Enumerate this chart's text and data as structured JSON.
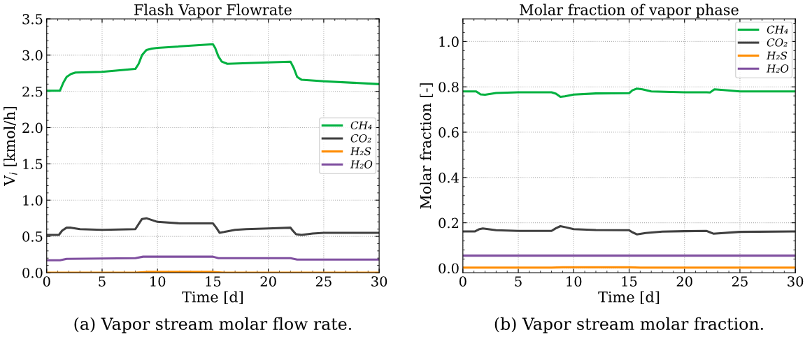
{
  "chart_data": [
    {
      "type": "line",
      "title": "Flash Vapor Flowrate",
      "xlabel": "Time [d]",
      "ylabel": "V$_{i}$ [kmol/h]",
      "xlim": [
        0,
        30
      ],
      "ylim": [
        0,
        3.5
      ],
      "xticks": [
        0,
        5,
        10,
        15,
        20,
        25,
        30
      ],
      "yticks": [
        {
          "value": 0,
          "label": "0.0"
        },
        0.5,
        {
          "value": 1,
          "label": "1.0"
        },
        1.5,
        {
          "value": 2,
          "label": "2.0"
        },
        2.5,
        {
          "value": 3,
          "label": "3.0"
        },
        3.5
      ],
      "grid": true,
      "legend": "center right",
      "annotations": [
        "(a) Vapor stream molar flow rate."
      ],
      "series": [
        {
          "name": "CH₄",
          "color": "#00b140",
          "x": [
            0,
            1.2,
            1.5,
            1.8,
            2.2,
            2.6,
            5,
            8,
            8.3,
            8.6,
            9,
            9.5,
            10,
            15,
            15.2,
            15.5,
            15.8,
            16.3,
            20,
            22,
            22.3,
            22.6,
            23,
            25,
            30
          ],
          "values": [
            2.51,
            2.51,
            2.62,
            2.7,
            2.74,
            2.76,
            2.77,
            2.81,
            2.88,
            3.0,
            3.07,
            3.09,
            3.1,
            3.15,
            3.1,
            2.98,
            2.91,
            2.88,
            2.9,
            2.91,
            2.82,
            2.7,
            2.66,
            2.64,
            2.6
          ]
        },
        {
          "name": "CO₂",
          "color": "#404040",
          "x": [
            0,
            1.1,
            1.4,
            1.8,
            2.2,
            3,
            5,
            8,
            8.3,
            8.6,
            9,
            10,
            12,
            15,
            15.3,
            15.6,
            16,
            17,
            18,
            20,
            22,
            22.2,
            22.5,
            23,
            24,
            25,
            30
          ],
          "values": [
            0.52,
            0.52,
            0.58,
            0.62,
            0.62,
            0.6,
            0.59,
            0.6,
            0.67,
            0.74,
            0.75,
            0.7,
            0.68,
            0.68,
            0.62,
            0.55,
            0.56,
            0.59,
            0.6,
            0.61,
            0.62,
            0.58,
            0.53,
            0.52,
            0.54,
            0.55,
            0.55
          ]
        },
        {
          "name": "H₂S",
          "color": "#ff8c00",
          "x": [
            0,
            8,
            9,
            15,
            16,
            30
          ],
          "values": [
            0,
            0,
            0.01,
            0.01,
            0,
            0
          ]
        },
        {
          "name": "H₂O",
          "color": "#8050a0",
          "x": [
            0,
            1.2,
            1.8,
            8,
            8.7,
            15,
            15.5,
            22,
            22.6,
            30
          ],
          "values": [
            0.17,
            0.17,
            0.19,
            0.2,
            0.22,
            0.22,
            0.2,
            0.2,
            0.18,
            0.18
          ]
        }
      ]
    },
    {
      "type": "line",
      "title": "Molar fraction of vapor phase",
      "xlabel": "Time [d]",
      "ylabel": "Molar fraction [-]",
      "xlim": [
        0,
        30
      ],
      "ylim": [
        -0.02,
        1.1
      ],
      "xticks": [
        0,
        5,
        10,
        15,
        20,
        25,
        30
      ],
      "yticks": [
        {
          "value": 0,
          "label": "0.0"
        },
        0.2,
        0.4,
        0.6,
        0.8,
        {
          "value": 1,
          "label": "1.0"
        }
      ],
      "grid": true,
      "legend": "upper right",
      "annotations": [
        "(b) Vapor stream molar fraction."
      ],
      "series": [
        {
          "name": "CH₄",
          "color": "#00b140",
          "x": [
            0,
            1.2,
            1.6,
            2,
            3,
            5,
            8,
            8.4,
            8.8,
            9.2,
            10,
            12,
            15,
            15.3,
            15.7,
            16.2,
            17,
            20,
            22,
            22.3,
            22.7,
            23.5,
            25,
            30
          ],
          "values": [
            0.78,
            0.78,
            0.767,
            0.765,
            0.773,
            0.776,
            0.776,
            0.77,
            0.756,
            0.758,
            0.766,
            0.771,
            0.772,
            0.785,
            0.792,
            0.789,
            0.78,
            0.776,
            0.776,
            0.775,
            0.789,
            0.786,
            0.78,
            0.78
          ]
        },
        {
          "name": "CO₂",
          "color": "#404040",
          "x": [
            0,
            1.1,
            1.5,
            1.8,
            3,
            5,
            8,
            8.4,
            8.8,
            9.3,
            10,
            12,
            15,
            15.3,
            15.7,
            16.5,
            18,
            20,
            22,
            22.3,
            22.6,
            25,
            30
          ],
          "values": [
            0.162,
            0.162,
            0.172,
            0.175,
            0.167,
            0.164,
            0.164,
            0.176,
            0.185,
            0.18,
            0.172,
            0.168,
            0.167,
            0.158,
            0.149,
            0.155,
            0.161,
            0.163,
            0.164,
            0.158,
            0.152,
            0.16,
            0.162
          ]
        },
        {
          "name": "H₂S",
          "color": "#ff8c00",
          "x": [
            0,
            8,
            9,
            15,
            16,
            30
          ],
          "values": [
            0.002,
            0.002,
            0.004,
            0.004,
            0.002,
            0.002
          ]
        },
        {
          "name": "H₂O",
          "color": "#8050a0",
          "x": [
            0,
            30
          ],
          "values": [
            0.055,
            0.055
          ]
        }
      ]
    }
  ]
}
